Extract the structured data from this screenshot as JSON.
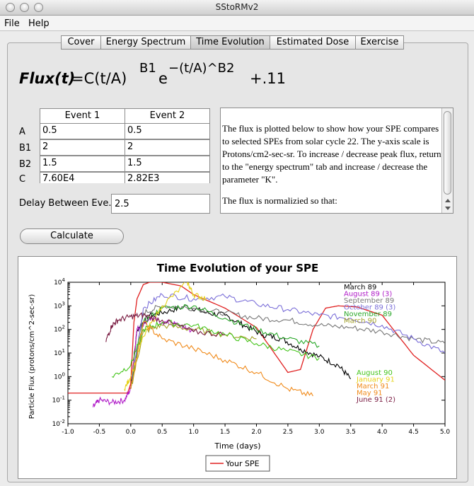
{
  "window": {
    "title": "SStoRMv2"
  },
  "menu": [
    "File",
    "Help"
  ],
  "tabs": [
    {
      "label": "Cover",
      "selected": false
    },
    {
      "label": "Energy Spectrum",
      "selected": false
    },
    {
      "label": "Time Evolution",
      "selected": true
    },
    {
      "label": "Estimated Dose",
      "selected": false
    },
    {
      "label": "Exercise",
      "selected": false
    }
  ],
  "formula": {
    "lhs": "Flux(t)",
    "eq": "=C(t/A)",
    "exp1": "B1",
    "e": "e",
    "exp2": "−(t/A)^B2",
    "tail": "+.11"
  },
  "params": {
    "col_headers": [
      "Event 1",
      "Event 2"
    ],
    "rows": [
      {
        "label": "A",
        "v1": "0.5",
        "v2": "0.5"
      },
      {
        "label": "B1",
        "v1": "2",
        "v2": "2"
      },
      {
        "label": "B2",
        "v1": "1.5",
        "v2": "1.5"
      },
      {
        "label": "C",
        "v1": "7.60E4",
        "v2": "2.82E3"
      }
    ]
  },
  "delay": {
    "label": "Delay Between Eve...",
    "value": "2.5"
  },
  "description": {
    "p1": "The flux is plotted below to show how your SPE compares to selected SPEs from solar cycle 22. The y-axis scale is Protons/cm2-sec-sr. To increase / decrease peak flux, return to the \"energy spectrum\" tab and increase / decrease the parameter \"K\".",
    "p2": "The flux is normalizied so that:"
  },
  "calculate_label": "Calculate",
  "chart_data": {
    "type": "line",
    "title": "Time Evolution of your SPE",
    "xlabel": "Time (days)",
    "ylabel": "Particle Flux (protons/cm^2-sec-sr)",
    "xlim": [
      -1.0,
      5.0
    ],
    "ylim_log10": [
      -2,
      4
    ],
    "y_scale": "log",
    "x_ticks": [
      "-1.0",
      "-0.5",
      "0.0",
      "0.5",
      "1.0",
      "1.5",
      "2.0",
      "2.5",
      "3.0",
      "3.5",
      "4.0",
      "4.5",
      "5.0"
    ],
    "y_ticks": [
      "10^-2",
      "10^-1",
      "10^0",
      "10^1",
      "10^2",
      "10^3",
      "10^4"
    ],
    "legend": [
      "Your SPE"
    ],
    "legend_placement": "bottom-center",
    "annotations_top": [
      {
        "label": "March 89",
        "color": "#000000"
      },
      {
        "label": "August 89 (3)",
        "color": "#b01cc8"
      },
      {
        "label": "September 89",
        "color": "#777777"
      },
      {
        "label": "October 89 (3)",
        "color": "#7b6fd8"
      },
      {
        "label": "November 89",
        "color": "#2aa82a"
      },
      {
        "label": "March 90",
        "color": "#a4a22a"
      }
    ],
    "annotations_bottom": [
      {
        "label": "August 90",
        "color": "#45c51c"
      },
      {
        "label": "January 91",
        "color": "#e6d21a"
      },
      {
        "label": "March 91",
        "color": "#f08a1a"
      },
      {
        "label": "May 91",
        "color": "#f08a1a"
      },
      {
        "label": "June 91 (2)",
        "color": "#7a1c42"
      }
    ],
    "series": [
      {
        "name": "Your SPE",
        "color": "#e02020",
        "x": [
          -1.0,
          -0.4,
          -0.05,
          0.0,
          0.05,
          0.1,
          0.2,
          0.3,
          0.5,
          0.8,
          1.0,
          1.5,
          2.0,
          2.5,
          2.7,
          2.9,
          3.1,
          3.3,
          3.6,
          4.0,
          4.5,
          5.0
        ],
        "y": [
          0.2,
          0.2,
          0.2,
          0.5,
          200,
          2000,
          8000,
          10000,
          10000,
          7000,
          3000,
          800,
          120,
          1.5,
          2,
          100,
          800,
          1000,
          900,
          400,
          8,
          0.7
        ]
      },
      {
        "name": "March 89",
        "color": "#000000",
        "x": [
          0.0,
          0.1,
          0.3,
          0.6,
          0.9,
          1.2,
          1.5,
          1.8,
          2.1,
          2.4,
          2.7,
          3.0,
          3.3,
          3.5
        ],
        "y": [
          0.3,
          100,
          400,
          600,
          1000,
          500,
          400,
          150,
          60,
          40,
          15,
          7,
          3,
          0.8
        ]
      },
      {
        "name": "August 89 (3)",
        "color": "#b01cc8",
        "x": [
          -0.6,
          -0.5,
          -0.3,
          -0.1,
          0.0,
          0.1,
          0.3,
          0.5,
          0.8,
          1.0
        ],
        "y": [
          0.05,
          0.1,
          0.08,
          0.1,
          0.3,
          100,
          300,
          200,
          150,
          80
        ]
      },
      {
        "name": "September 89",
        "color": "#777777",
        "x": [
          0.0,
          0.2,
          0.5,
          1.0,
          1.5,
          2.0,
          2.5,
          3.0,
          3.5,
          4.0,
          4.5,
          5.0
        ],
        "y": [
          0.3,
          500,
          1000,
          800,
          500,
          300,
          250,
          150,
          120,
          80,
          40,
          25
        ]
      },
      {
        "name": "October 89 (3)",
        "color": "#7b6fd8",
        "x": [
          0.0,
          0.2,
          0.5,
          1.0,
          1.5,
          2.0,
          2.5,
          3.0,
          3.5,
          4.0,
          4.5,
          5.0
        ],
        "y": [
          0.3,
          800,
          3000,
          2000,
          2500,
          1200,
          700,
          400,
          300,
          150,
          40,
          10
        ]
      },
      {
        "name": "November 89",
        "color": "#2aa82a",
        "x": [
          0.0,
          0.2,
          0.5,
          1.0,
          1.5,
          2.0,
          2.5,
          3.0
        ],
        "y": [
          0.3,
          200,
          800,
          1000,
          300,
          100,
          40,
          20
        ]
      },
      {
        "name": "March 90",
        "color": "#a4a22a",
        "x": [
          0.0,
          0.2,
          0.5,
          1.0,
          1.5,
          2.0
        ],
        "y": [
          0.3,
          80,
          150,
          100,
          60,
          40
        ]
      },
      {
        "name": "August 90",
        "color": "#45c51c",
        "x": [
          -0.3,
          0.0,
          0.2,
          0.5,
          1.0,
          1.5,
          2.0,
          2.5,
          3.0
        ],
        "y": [
          1,
          3,
          100,
          200,
          150,
          60,
          25,
          12,
          6
        ]
      },
      {
        "name": "January 91",
        "color": "#e6d21a",
        "x": [
          -0.1,
          0.0,
          0.2,
          0.5,
          0.9,
          1.0,
          1.2
        ],
        "y": [
          0.3,
          1,
          50,
          1000,
          10000,
          3000,
          2000
        ]
      },
      {
        "name": "March 91",
        "color": "#f08a1a",
        "x": [
          0.0,
          0.2,
          0.5,
          1.0,
          1.5,
          2.0,
          2.5,
          2.9
        ],
        "y": [
          0.3,
          200,
          40,
          15,
          5,
          1.5,
          0.3,
          0.15
        ]
      },
      {
        "name": "June 91 (2)",
        "color": "#7a1c42",
        "x": [
          -0.4,
          -0.3,
          -0.2,
          0.0,
          0.2,
          0.5,
          1.0,
          1.5
        ],
        "y": [
          30,
          150,
          250,
          350,
          400,
          250,
          80,
          60
        ]
      }
    ]
  }
}
